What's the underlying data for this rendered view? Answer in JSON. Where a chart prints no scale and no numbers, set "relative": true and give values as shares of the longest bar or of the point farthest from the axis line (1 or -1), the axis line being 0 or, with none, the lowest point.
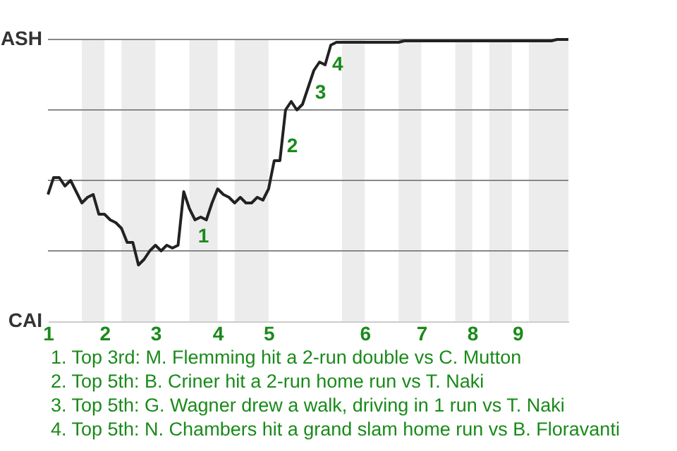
{
  "chart_data": {
    "type": "line",
    "relative": true,
    "categories": [
      "1",
      null,
      null,
      null,
      null,
      null,
      null,
      null,
      null,
      null,
      "2",
      null,
      null,
      null,
      null,
      null,
      null,
      null,
      null,
      "3",
      null,
      null,
      null,
      null,
      null,
      null,
      null,
      null,
      null,
      null,
      "4",
      null,
      null,
      null,
      null,
      null,
      null,
      null,
      null,
      "5",
      null,
      null,
      null,
      null,
      null,
      null,
      null,
      null,
      null,
      null,
      null,
      null,
      null,
      null,
      null,
      null,
      "6",
      null,
      null,
      null,
      null,
      null,
      null,
      null,
      null,
      null,
      "7",
      null,
      null,
      null,
      null,
      null,
      null,
      null,
      null,
      "8",
      null,
      null,
      null,
      null,
      null,
      null,
      null,
      "9",
      null,
      null,
      null,
      null,
      null,
      null,
      null,
      null,
      null
    ],
    "series": [
      {
        "color": "#222222",
        "values": [
          0.45,
          0.51,
          0.51,
          0.48,
          0.5,
          0.46,
          0.42,
          0.44,
          0.45,
          0.38,
          0.38,
          0.36,
          0.35,
          0.33,
          0.28,
          0.28,
          0.2,
          0.22,
          0.25,
          0.27,
          0.25,
          0.27,
          0.26,
          0.27,
          0.46,
          0.4,
          0.36,
          0.37,
          0.36,
          0.42,
          0.47,
          0.45,
          0.44,
          0.42,
          0.44,
          0.42,
          0.42,
          0.44,
          0.43,
          0.47,
          0.57,
          0.57,
          0.75,
          0.78,
          0.75,
          0.77,
          0.83,
          0.89,
          0.92,
          0.91,
          0.98,
          0.99,
          0.99,
          0.99,
          0.99,
          0.99,
          0.99,
          0.99,
          0.99,
          0.99,
          0.99,
          0.99,
          0.99,
          0.995,
          0.995,
          0.995,
          0.995,
          0.995,
          0.995,
          0.995,
          0.995,
          0.995,
          0.995,
          0.995,
          0.995,
          0.995,
          0.995,
          0.995,
          0.995,
          0.995,
          0.995,
          0.995,
          0.995,
          0.995,
          0.995,
          0.995,
          0.995,
          0.995,
          0.995,
          0.995,
          1,
          1,
          1
        ]
      }
    ],
    "grid": "y",
    "annotations": [
      "ASH",
      "CAI",
      "1",
      "2",
      "3",
      "4",
      "1. Top 3rd: M. Flemming hit a 2-run double vs C. Mutton",
      "2. Top 5th: B. Criner hit a 2-run home run vs T. Naki",
      "3. Top 5th: G. Wagner drew a walk, driving in 1 run vs T. Naki",
      "4. Top 5th: N. Chambers hit a grand slam home run vs B. Floravanti"
    ],
    "marker": "none",
    "line_style": "solid"
  }
}
